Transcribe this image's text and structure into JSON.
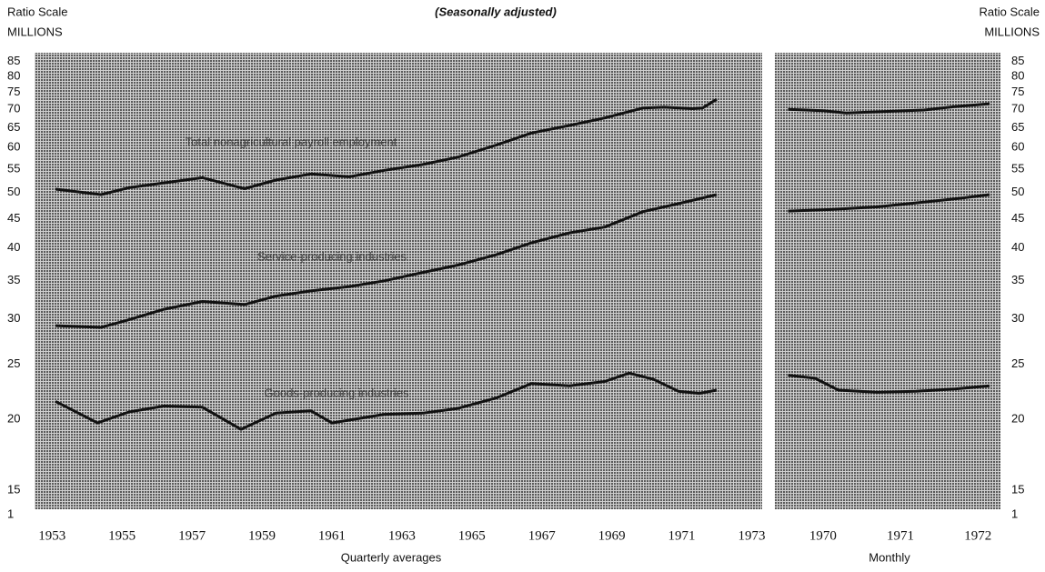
{
  "chart_data": [
    {
      "type": "line",
      "title": "(Seasonally adjusted)",
      "y_label": [
        "Ratio Scale",
        "MILLIONS"
      ],
      "x_label": "Quarterly averages",
      "log_scale": true,
      "grid": false,
      "xlim": [
        1952.5,
        1973.3
      ],
      "xticks": [
        1953,
        1955,
        1957,
        1959,
        1961,
        1963,
        1965,
        1967,
        1969,
        1971,
        1973
      ],
      "ylim": [
        13.9,
        88
      ],
      "yticks": [
        15,
        20,
        25,
        30,
        35,
        40,
        45,
        50,
        55,
        60,
        65,
        70,
        75,
        80,
        85
      ],
      "y_break_tick": 1,
      "series": [
        {
          "name": "Total nonagricultural payroll employment",
          "color": "#111111",
          "x": [
            1953.1,
            1954.4,
            1955.2,
            1956.2,
            1957.3,
            1958.5,
            1959.4,
            1960.4,
            1961.5,
            1962.5,
            1963.6,
            1964.6,
            1965.7,
            1966.7,
            1967.8,
            1968.8,
            1969.9,
            1970.5,
            1971.3,
            1971.6,
            1972.0
          ],
          "values": [
            50.7,
            49.6,
            51.0,
            52.0,
            53.1,
            50.8,
            52.6,
            53.9,
            53.3,
            54.7,
            56.0,
            57.7,
            60.6,
            63.6,
            65.6,
            67.6,
            70.4,
            70.6,
            70.2,
            70.4,
            72.9
          ]
        },
        {
          "name": "Service-producing industries",
          "color": "#111111",
          "x": [
            1953.1,
            1954.4,
            1955.2,
            1956.2,
            1957.3,
            1958.5,
            1959.4,
            1960.4,
            1961.5,
            1962.5,
            1963.6,
            1964.6,
            1965.7,
            1966.7,
            1967.8,
            1968.8,
            1969.9,
            1970.9,
            1972.0
          ],
          "values": [
            29.2,
            29.0,
            29.9,
            31.2,
            32.2,
            31.8,
            32.9,
            33.6,
            34.2,
            35.0,
            36.2,
            37.3,
            38.9,
            40.8,
            42.5,
            43.5,
            46.3,
            47.8,
            49.6
          ]
        },
        {
          "name": "Goods-producing industries",
          "color": "#111111",
          "x": [
            1953.1,
            1954.3,
            1955.2,
            1956.2,
            1957.3,
            1958.4,
            1959.4,
            1960.4,
            1961.0,
            1962.5,
            1963.6,
            1964.6,
            1965.7,
            1966.7,
            1967.8,
            1968.8,
            1969.5,
            1970.2,
            1970.9,
            1971.5,
            1972.0
          ],
          "values": [
            21.5,
            19.7,
            20.6,
            21.1,
            21.0,
            19.2,
            20.5,
            20.7,
            19.7,
            20.4,
            20.5,
            20.9,
            21.8,
            23.1,
            22.9,
            23.3,
            24.1,
            23.5,
            22.4,
            22.2,
            22.5
          ]
        }
      ]
    },
    {
      "type": "line",
      "y_label": [
        "Ratio Scale",
        "MILLIONS"
      ],
      "x_label": "Monthly",
      "log_scale": true,
      "grid": false,
      "xlim": [
        1969.88,
        1972.79
      ],
      "xticks": [
        {
          "value": 1970.5,
          "label": "1970"
        },
        {
          "value": 1971.5,
          "label": "1971"
        },
        {
          "value": 1972.5,
          "label": "1972"
        }
      ],
      "ylim": [
        13.9,
        88
      ],
      "yticks": [
        15,
        20,
        25,
        30,
        35,
        40,
        45,
        50,
        55,
        60,
        65,
        70,
        75,
        80,
        85
      ],
      "y_break_tick": 1,
      "series": [
        {
          "color": "#111111",
          "x": [
            1970.05,
            1970.5,
            1970.8,
            1971.3,
            1971.8,
            1972.2,
            1972.65
          ],
          "values": [
            70.0,
            69.6,
            69.0,
            69.4,
            69.8,
            70.8,
            71.6
          ]
        },
        {
          "color": "#111111",
          "x": [
            1970.05,
            1970.6,
            1971.2,
            1971.8,
            1972.3,
            1972.65
          ],
          "values": [
            46.4,
            46.7,
            47.2,
            48.1,
            48.9,
            49.6
          ]
        },
        {
          "color": "#111111",
          "x": [
            1970.05,
            1970.4,
            1970.7,
            1971.2,
            1971.7,
            1972.2,
            1972.65
          ],
          "values": [
            23.9,
            23.6,
            22.5,
            22.3,
            22.4,
            22.6,
            22.9
          ]
        }
      ]
    }
  ]
}
